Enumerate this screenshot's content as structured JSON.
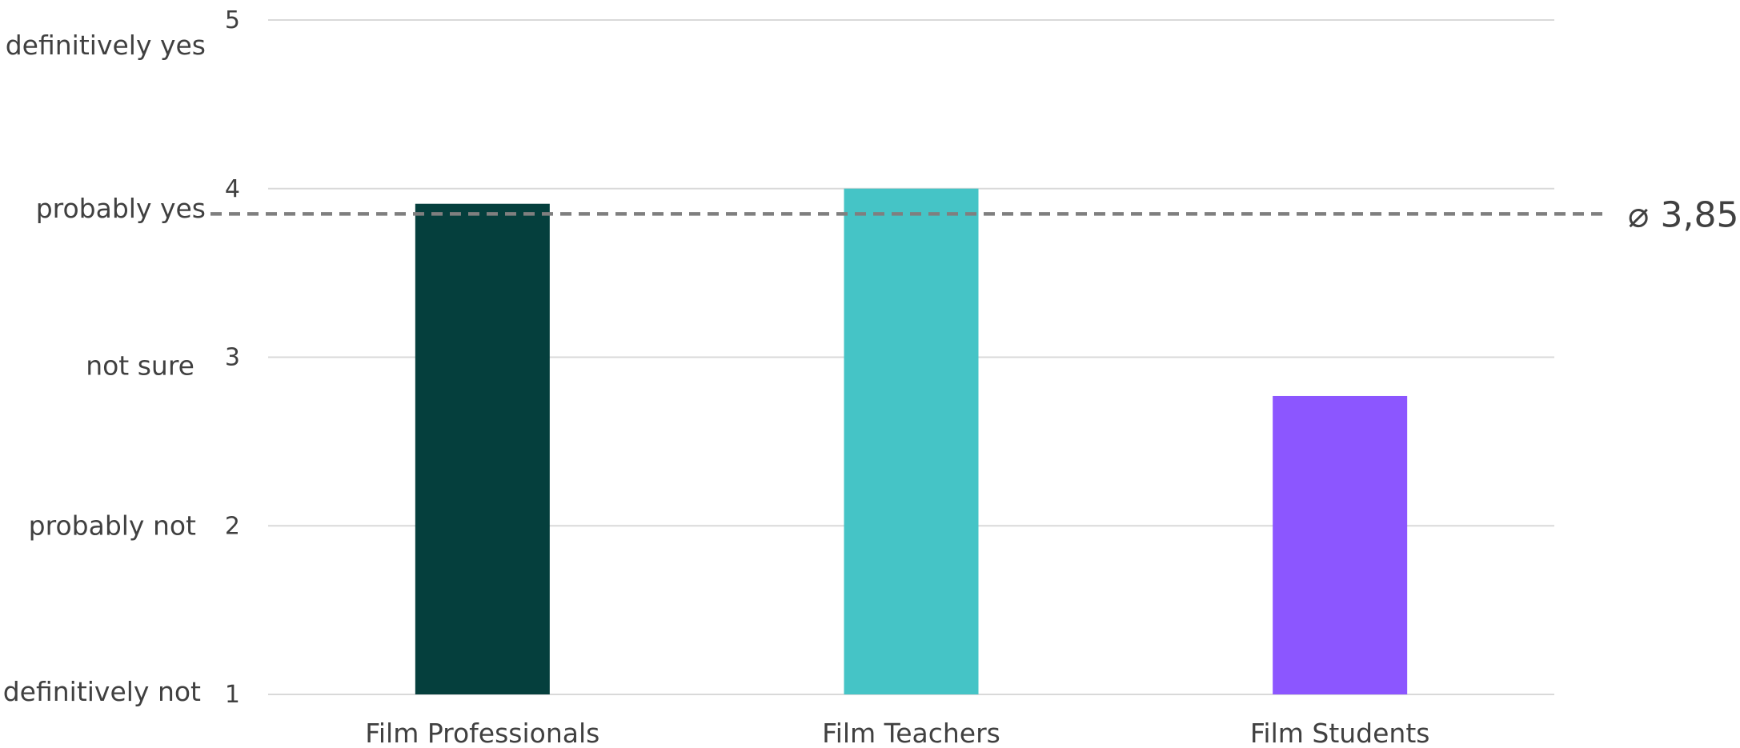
{
  "chart_data": {
    "type": "bar",
    "categories": [
      "Film Professionals",
      "Film Teachers",
      "Film Students"
    ],
    "values": [
      3.91,
      4.0,
      2.77
    ],
    "colors": [
      "#053f3d",
      "#45c4c6",
      "#8c56ff"
    ],
    "yticks": [
      1,
      2,
      3,
      4,
      5
    ],
    "ylim": [
      1,
      5
    ],
    "scale_labels": [
      {
        "value": 5,
        "label": "definitively yes"
      },
      {
        "value": 4,
        "label": "probably yes"
      },
      {
        "value": 3,
        "label": "not sure"
      },
      {
        "value": 2,
        "label": "probably not"
      },
      {
        "value": 1,
        "label": "definitively not"
      }
    ],
    "average": {
      "value": 3.85,
      "label": "⌀ 3,85",
      "color": "#7f7f7f"
    },
    "grid": true,
    "legend": "none",
    "title": "",
    "xlabel": "",
    "ylabel": ""
  }
}
